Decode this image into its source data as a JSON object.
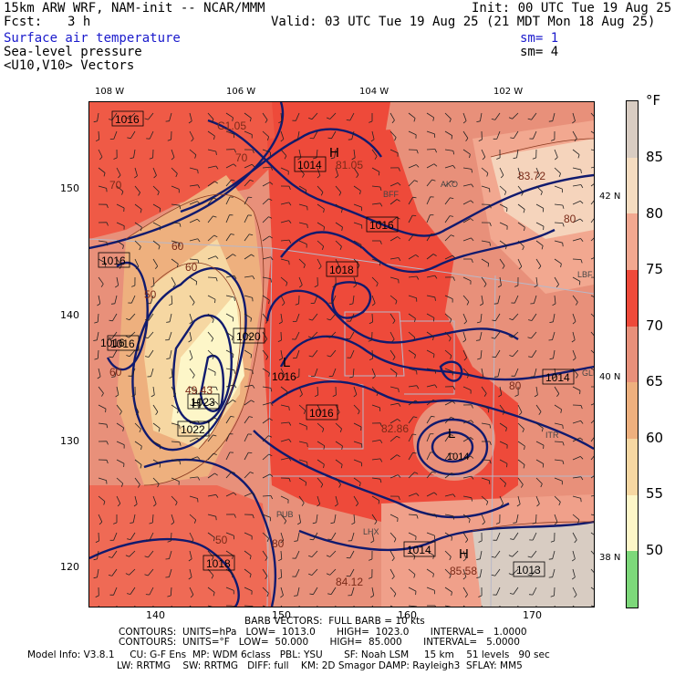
{
  "header": {
    "line1_left": "15km ARW WRF, NAM-init -- NCAR/MMM",
    "line1_right": "Init: 00 UTC Tue 19 Aug 25",
    "fcst_label": "Fcst:",
    "fcst_value": "3 h",
    "valid": "Valid: 03 UTC Tue 19 Aug 25 (21 MDT Mon 18 Aug 25)",
    "field1": "Surface air temperature",
    "field1_sm": "sm= 1",
    "field2": "Sea-level pressure",
    "field2_sm": "sm= 4",
    "field3": "<U10,V10> Vectors"
  },
  "map": {
    "lon_labels": [
      "108 W",
      "106 W",
      "104 W",
      "102 W"
    ],
    "lat_labels": [
      "42 N",
      "40 N",
      "38 N"
    ],
    "grid_x_labels": [
      "140",
      "150",
      "160",
      "170"
    ],
    "grid_y_labels": [
      "150",
      "140",
      "130",
      "120"
    ],
    "pressure_labels": [
      "1016",
      "1016",
      "1014",
      "1016",
      "1018",
      "1016",
      "1020",
      "1016",
      "1023",
      "1022",
      "1018",
      "1016",
      "1014",
      "1013",
      "1014",
      "1016"
    ],
    "extremes": [
      {
        "symbol": "H",
        "value": "1014"
      },
      {
        "symbol": "H",
        "value": "1023"
      },
      {
        "symbol": "L",
        "value": "1016"
      },
      {
        "symbol": "L",
        "value": "1014"
      },
      {
        "symbol": "H",
        "value": "1013"
      }
    ],
    "temp_labels": [
      "C1.05",
      "81.05",
      "83.72",
      "49.43",
      "82.86",
      "84.12",
      "85.58",
      "70",
      "80",
      "70",
      "60",
      "50",
      "80",
      "60",
      "80",
      "50",
      "60"
    ],
    "station_labels": [
      "BFF",
      "AKO",
      "LHX",
      "PUB",
      "LBF",
      "GLD",
      "ITR"
    ]
  },
  "colorbar": {
    "unit": "°F",
    "ticks": [
      "85",
      "80",
      "75",
      "70",
      "65",
      "60",
      "55",
      "50"
    ],
    "colors": [
      "#d8ccc2",
      "#f5dcc0",
      "#f2a890",
      "#ee4a3a",
      "#e8907a",
      "#eeb07e",
      "#f6d7a2",
      "#fdf6c8",
      "#7dd87a"
    ]
  },
  "footer": {
    "barb": "BARB VECTORS:  FULL BARB = 10 kts",
    "contours1": "CONTOURS:  UNITS=hPa   LOW=  1013.0       HIGH=  1023.0       INTERVAL=   1.0000",
    "contours2": "CONTOURS:  UNITS=°F   LOW=  50.000       HIGH=  85.000       INTERVAL=   5.0000",
    "model1": "Model Info: V3.8.1     CU: G-F Ens  MP: WDM 6class   PBL: YSU       SF: Noah LSM     15 km    51 levels   90 sec",
    "model2": "LW: RRTMG    SW: RRTMG   DIFF: full    KM: 2D Smagor DAMP: Rayleigh3  SFLAY: MM5"
  }
}
